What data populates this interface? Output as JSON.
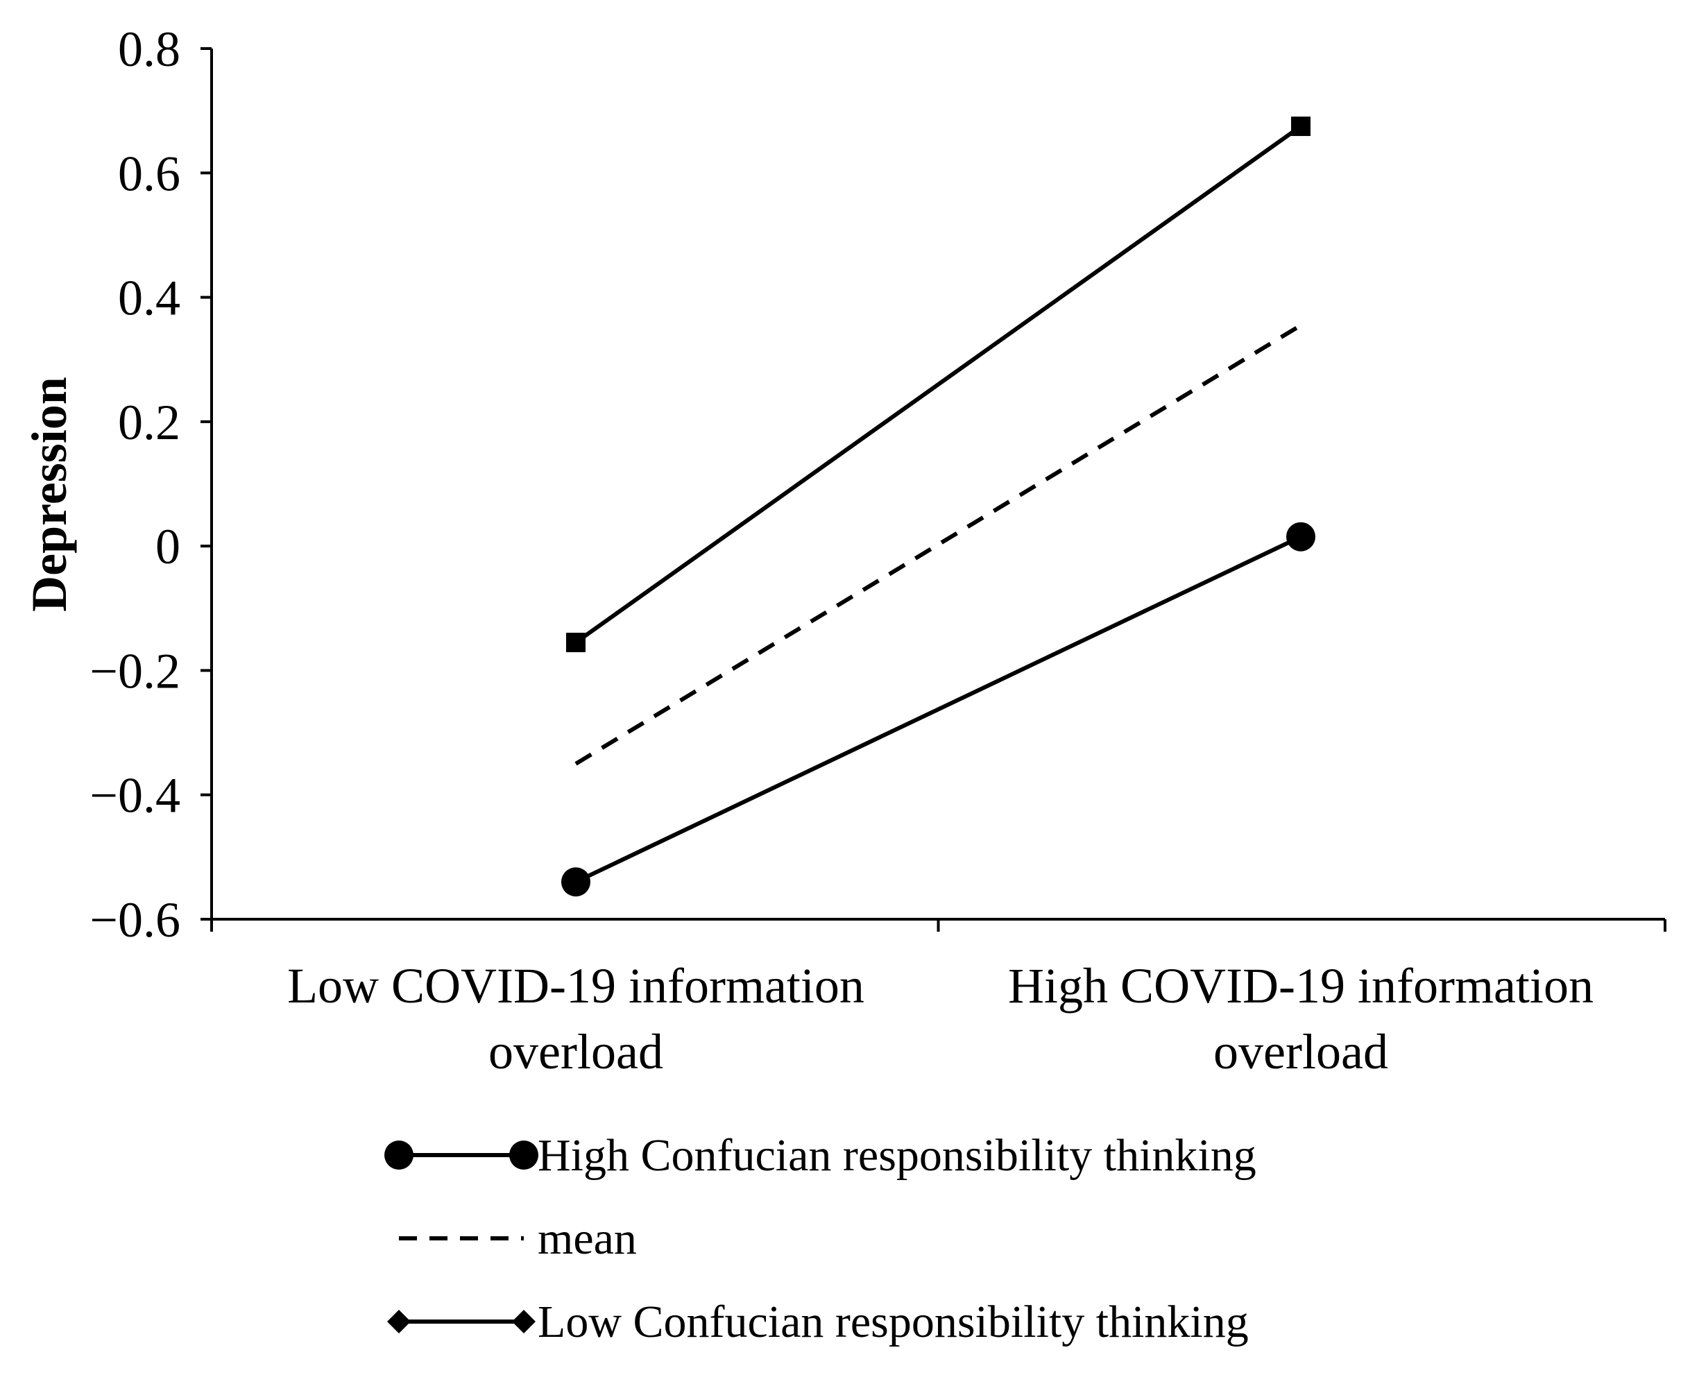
{
  "chart_data": {
    "type": "line",
    "title": "",
    "xlabel": "",
    "ylabel": "Depression",
    "categories": [
      [
        "Low COVID-19 information",
        "overload"
      ],
      [
        "High COVID-19 information",
        "overload"
      ]
    ],
    "ylim": [
      -0.6,
      0.8
    ],
    "yticks": [
      0.8,
      0.6,
      0.4,
      0.2,
      0,
      -0.2,
      -0.4,
      -0.6
    ],
    "ytick_labels": [
      "0.8",
      "0.6",
      "0.4",
      "0.2",
      "0",
      "−0.2",
      "−0.4",
      "−0.6"
    ],
    "grid": false,
    "legend_position": "bottom",
    "series": [
      {
        "name": "High Confucian responsibility thinking",
        "values": [
          -0.54,
          0.015
        ],
        "line": "solid",
        "marker": "circle",
        "color": "#000000"
      },
      {
        "name": "mean",
        "values": [
          -0.35,
          0.355
        ],
        "line": "dashed",
        "marker": "none",
        "color": "#000000"
      },
      {
        "name": "Low Confucian responsibility thinking",
        "values": [
          -0.155,
          0.675
        ],
        "line": "solid",
        "marker": "diamond",
        "color": "#000000"
      }
    ]
  }
}
